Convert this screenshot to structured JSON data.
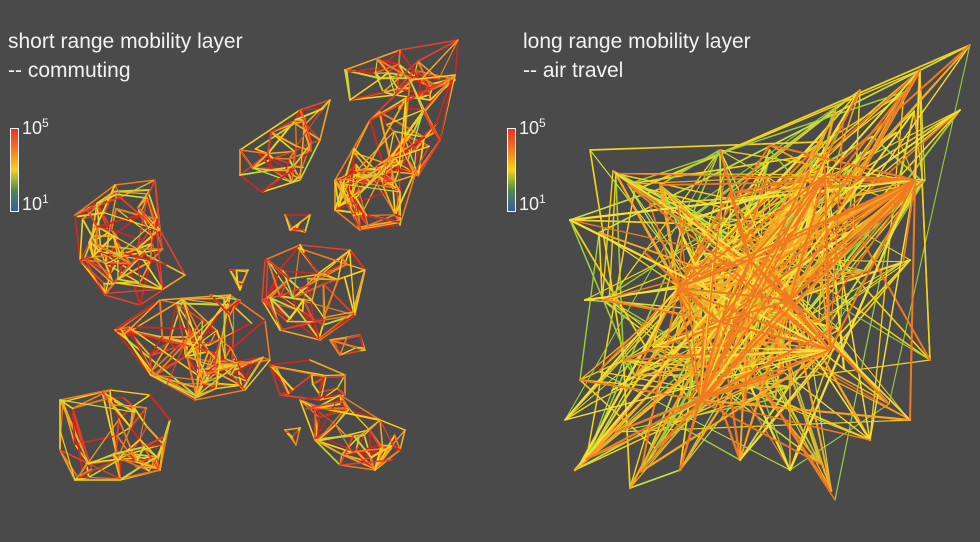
{
  "left_panel": {
    "title_line1": "short range mobility layer",
    "title_line2": "-- commuting",
    "legend": {
      "max_base": "10",
      "max_exp": "5",
      "min_base": "10",
      "min_exp": "1",
      "gradient": [
        "#e8302a",
        "#f27a1f",
        "#f5d21c",
        "#4f8a4a",
        "#3b5aa8"
      ]
    },
    "palette": [
      "#d8241c",
      "#e8402a",
      "#f07a22",
      "#f5a623",
      "#f7d21a",
      "#c8d63a"
    ]
  },
  "right_panel": {
    "title_line1": "long range mobility layer",
    "title_line2": "-- air travel",
    "legend": {
      "max_base": "10",
      "max_exp": "5",
      "min_base": "10",
      "min_exp": "1",
      "gradient": [
        "#e8302a",
        "#f27a1f",
        "#f5d21c",
        "#4f8a4a",
        "#3b5aa8"
      ]
    },
    "palette": [
      "#f2d21a",
      "#f5e03a",
      "#f7a623",
      "#f07a22",
      "#9ccf3a",
      "#c8e040"
    ]
  }
}
